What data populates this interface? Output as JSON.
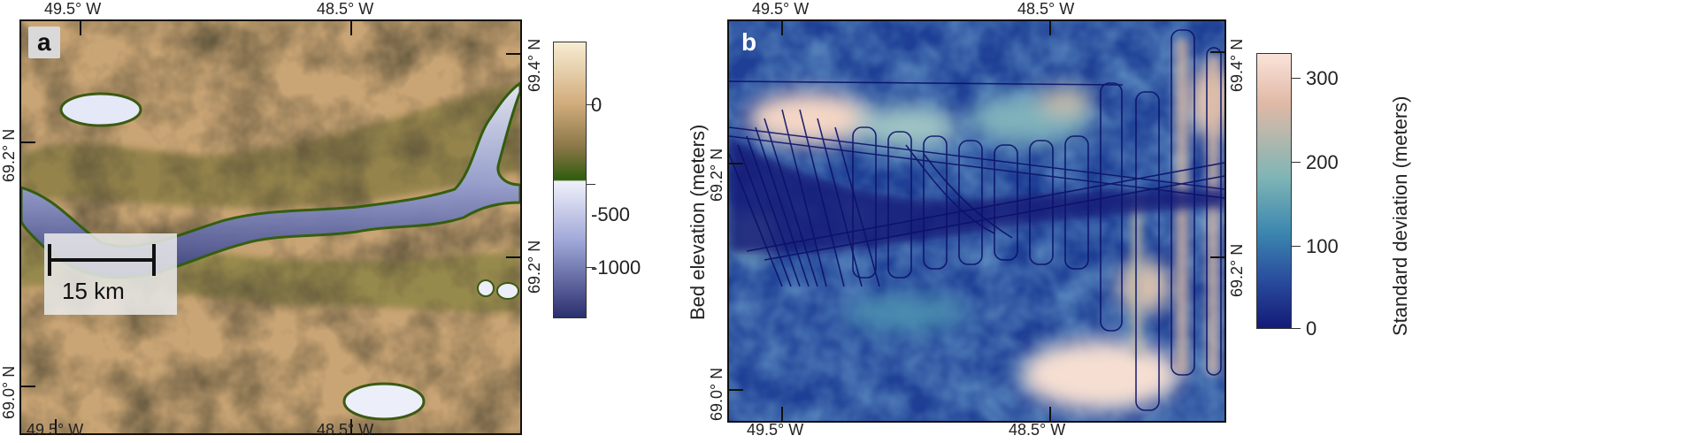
{
  "panel_a": {
    "letter": "a",
    "top_lon_labels": [
      "49.5° W",
      "48.5° W"
    ],
    "bottom_lon_labels": [
      "49.5° W",
      "48.5° W"
    ],
    "left_lat_labels": [
      "69.2° N",
      "69.0° N"
    ],
    "right_lat_labels": [
      "69.4° N",
      "69.2° N"
    ],
    "scale_bar_label": "15 km",
    "colorbar": {
      "title": "Bed elevation (meters)",
      "tick_labels": [
        "0",
        "-500",
        "-1000"
      ],
      "colors": [
        "#f7ecd3",
        "#d2ad7d",
        "#8a7748",
        "#2f5c0c",
        "#f0f0fa",
        "#a0a8d8",
        "#2a2f6e"
      ]
    }
  },
  "panel_b": {
    "letter": "b",
    "top_lon_labels": [
      "49.5° W",
      "48.5° W"
    ],
    "bottom_lon_labels": [
      "49.5° W",
      "48.5° W"
    ],
    "left_lat_labels": [
      "69.2° N",
      "69.0° N"
    ],
    "right_lat_labels": [
      "69.4° N",
      "69.2° N"
    ],
    "colorbar": {
      "title": "Standard deviation (meters)",
      "tick_labels": [
        "300",
        "200",
        "100",
        "0"
      ],
      "colors": [
        "#fbe3da",
        "#e0b9a6",
        "#7fb5b5",
        "#3c87b0",
        "#2a4e9e",
        "#131a78"
      ]
    }
  }
}
